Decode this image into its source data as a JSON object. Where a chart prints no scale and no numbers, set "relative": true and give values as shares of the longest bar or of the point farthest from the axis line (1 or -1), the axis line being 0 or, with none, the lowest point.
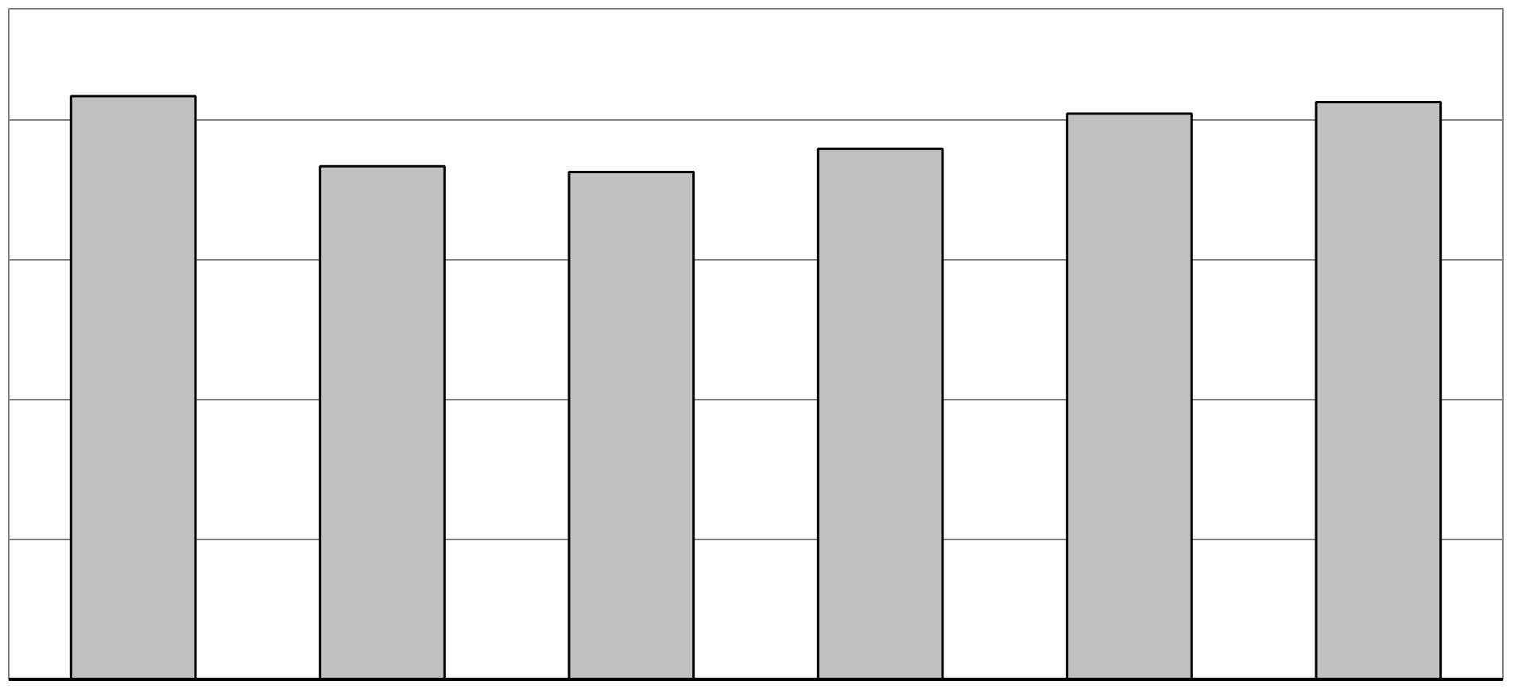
{
  "chart_data": {
    "type": "bar",
    "relative": true,
    "categories": [
      null,
      null,
      null,
      null,
      null,
      null
    ],
    "values": [
      1,
      0.88,
      0.87,
      0.91,
      0.97,
      0.99
    ],
    "color": "#c0c0c0",
    "grid": "y"
  }
}
